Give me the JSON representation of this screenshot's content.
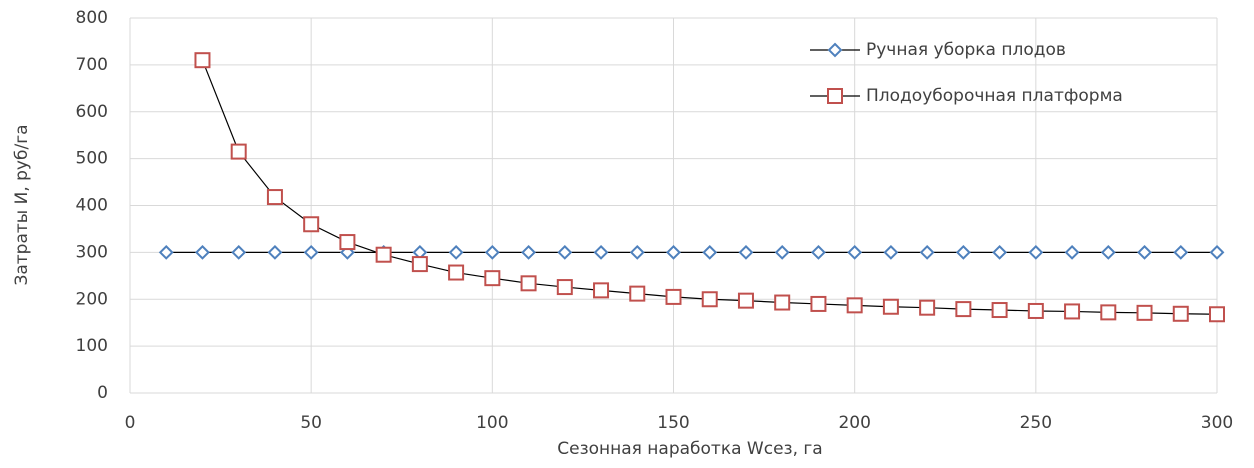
{
  "chart_data": {
    "type": "line",
    "x_label": "Сезонная наработка Wсез, га",
    "y_label": "Затраты И, руб/га",
    "xlim": [
      0,
      300
    ],
    "xticks": [
      0,
      50,
      100,
      150,
      200,
      250,
      300
    ],
    "ylim": [
      0,
      800
    ],
    "yticks": [
      0,
      100,
      200,
      300,
      400,
      500,
      600,
      700,
      800
    ],
    "grid": true,
    "legend": "upper right",
    "line_color": "#000000",
    "series": [
      {
        "name": "Ручная уборка плодов",
        "color": "#4f81bd",
        "marker": "diamond",
        "x": [
          10,
          20,
          30,
          40,
          50,
          60,
          70,
          80,
          90,
          100,
          110,
          120,
          130,
          140,
          150,
          160,
          170,
          180,
          190,
          200,
          210,
          220,
          230,
          240,
          250,
          260,
          270,
          280,
          290,
          300
        ],
        "values": [
          300,
          300,
          300,
          300,
          300,
          300,
          300,
          300,
          300,
          300,
          300,
          300,
          300,
          300,
          300,
          300,
          300,
          300,
          300,
          300,
          300,
          300,
          300,
          300,
          300,
          300,
          300,
          300,
          300,
          300
        ]
      },
      {
        "name": "Плодоуборочная платформа",
        "color": "#c0504d",
        "marker": "square",
        "x": [
          20,
          30,
          40,
          50,
          60,
          70,
          80,
          90,
          100,
          110,
          120,
          130,
          140,
          150,
          160,
          170,
          180,
          190,
          200,
          210,
          220,
          230,
          240,
          250,
          260,
          270,
          280,
          290,
          300
        ],
        "values": [
          710,
          515,
          418,
          360,
          322,
          295,
          275,
          257,
          245,
          234,
          226,
          219,
          212,
          205,
          200,
          197,
          193,
          190,
          187,
          184,
          182,
          179,
          177,
          175,
          174,
          172,
          171,
          169,
          168
        ]
      }
    ]
  }
}
